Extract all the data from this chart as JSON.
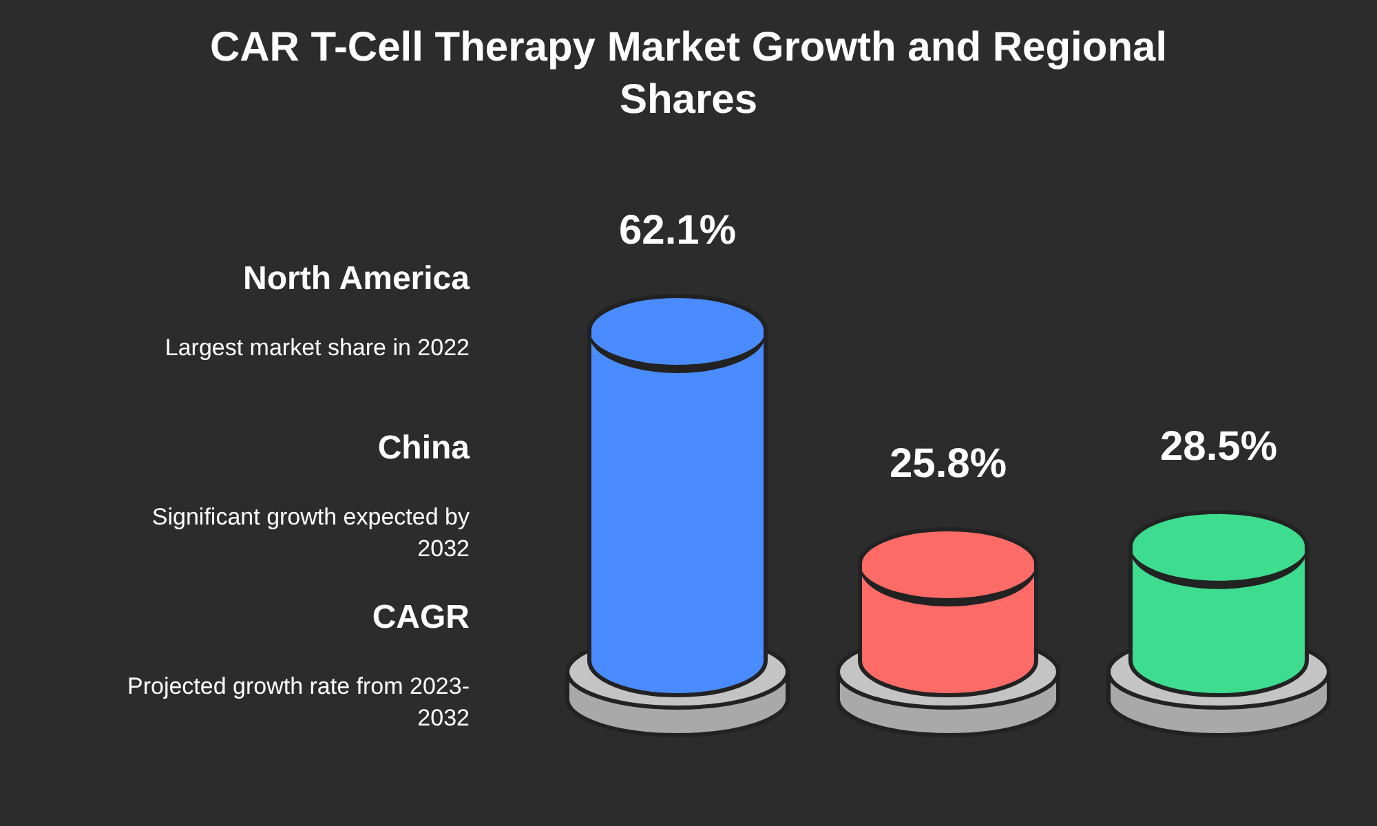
{
  "chart_data": {
    "type": "bar",
    "title": "CAR T-Cell Therapy Market Growth and Regional Shares",
    "categories": [
      null,
      null,
      null
    ],
    "values": [
      62.1,
      25.8,
      28.5
    ],
    "colors": [
      "#4a8cff",
      "#ff6b66",
      "#3ddc8f"
    ],
    "value_labels": [
      "62.1%",
      "25.8%",
      "28.5%"
    ],
    "annotations": [
      "North America",
      "Largest market share in 2022",
      "China",
      "Significant growth expected by 2032",
      "CAGR",
      "Projected growth rate from 2023-2032"
    ]
  }
}
